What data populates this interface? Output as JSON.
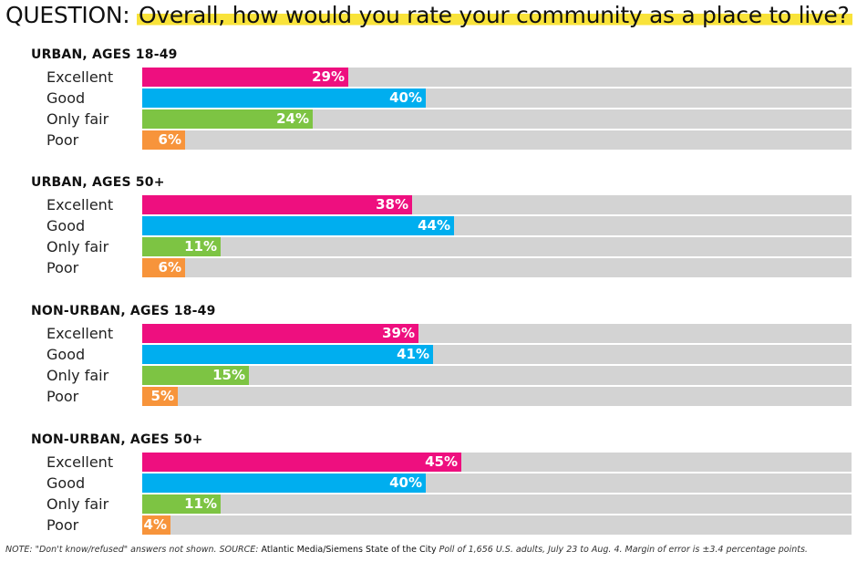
{
  "title": {
    "prefix": "QUESTION:",
    "question": "Overall, how would you rate your community as a place to live?"
  },
  "colors": {
    "Excellent": "#ee0f7f",
    "Good": "#00aeef",
    "Only fair": "#7dc443",
    "Poor": "#f7943b",
    "track": "#d3d3d3",
    "highlight": "#f9e33a"
  },
  "chart_data": {
    "type": "bar",
    "orientation": "horizontal",
    "xlim": [
      0,
      100
    ],
    "categories": [
      "Excellent",
      "Good",
      "Only fair",
      "Poor"
    ],
    "groups": [
      {
        "title": "URBAN, AGES 18-49",
        "values": [
          29,
          40,
          24,
          6
        ],
        "labels": [
          "29%",
          "40%",
          "24%",
          "6%"
        ]
      },
      {
        "title": "URBAN, AGES 50+",
        "values": [
          38,
          44,
          11,
          6
        ],
        "labels": [
          "38%",
          "44%",
          "11%",
          "6%"
        ]
      },
      {
        "title": "NON-URBAN, AGES 18-49",
        "values": [
          39,
          41,
          15,
          5
        ],
        "labels": [
          "39%",
          "41%",
          "15%",
          "5%"
        ]
      },
      {
        "title": "NON-URBAN, AGES 50+",
        "values": [
          45,
          40,
          11,
          4
        ],
        "labels": [
          "45%",
          "40%",
          "11%",
          "4%"
        ]
      }
    ]
  },
  "footnote": {
    "part1": "NOTE: \"Don't know/refused\" answers not shown. SOURCE: ",
    "source": "Atlantic Media/Siemens State of the City",
    "part2": " Poll of 1,656 U.S. adults, July 23 to Aug. 4. Margin of error is ±3.4 percentage points."
  }
}
